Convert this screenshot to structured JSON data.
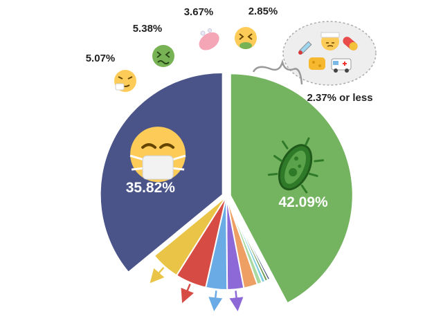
{
  "chart_data": {
    "type": "pie",
    "title": "",
    "slices": [
      {
        "value": 42.09,
        "label": "42.09%",
        "color": "#74b35f",
        "icon": "microbe-icon"
      },
      {
        "value": 0.4,
        "label": "",
        "color": "#3e4c84",
        "icon": ""
      },
      {
        "value": 0.5,
        "label": "",
        "color": "#6f9a4e",
        "icon": ""
      },
      {
        "value": 0.6,
        "label": "",
        "color": "#7fcfe0",
        "icon": ""
      },
      {
        "value": 0.85,
        "label": "",
        "color": "#a8d9a0",
        "icon": ""
      },
      {
        "value": 2.37,
        "label": "",
        "color": "#ee9f63",
        "icon": ""
      },
      {
        "value": 2.85,
        "label": "2.85%",
        "color": "#8d69d8",
        "icon": "nauseated-face-icon"
      },
      {
        "value": 3.67,
        "label": "3.67%",
        "color": "#6aabe6",
        "icon": "soap-icon"
      },
      {
        "value": 5.38,
        "label": "5.38%",
        "color": "#d64b43",
        "icon": "sick-face-icon"
      },
      {
        "value": 5.07,
        "label": "5.07%",
        "color": "#e9c446",
        "icon": "sneezing-face-icon"
      },
      {
        "value": 35.82,
        "label": "35.82%",
        "color": "#4a5488",
        "icon": "mask-face-icon"
      }
    ],
    "group_label": "2.37% or less",
    "group_icons": [
      "syringe-icon",
      "bandaged-face-icon",
      "pill-icon",
      "sponge-icon",
      "ambulance-icon"
    ]
  }
}
